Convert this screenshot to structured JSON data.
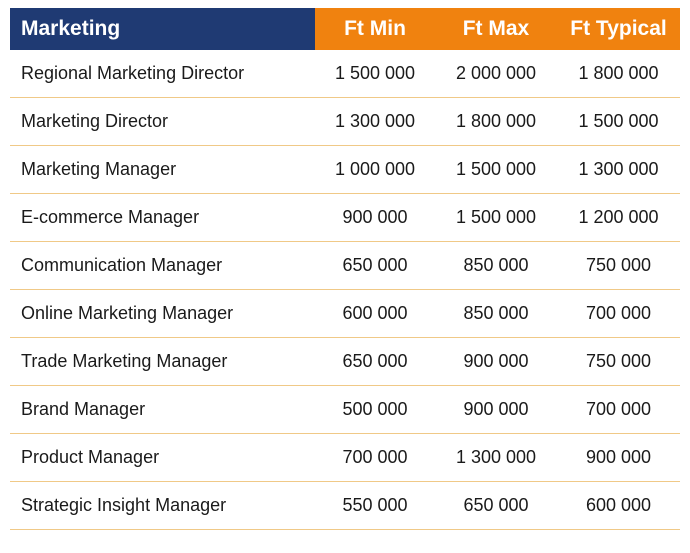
{
  "table": {
    "header": {
      "title": "Marketing",
      "columns": [
        "Ft Min",
        "Ft Max",
        "Ft Typical"
      ]
    },
    "rows": [
      {
        "role": "Regional Marketing Director",
        "min": "1 500 000",
        "max": "2 000 000",
        "typical": "1 800 000"
      },
      {
        "role": "Marketing Director",
        "min": "1 300 000",
        "max": "1 800 000",
        "typical": "1 500 000"
      },
      {
        "role": "Marketing Manager",
        "min": "1 000 000",
        "max": "1 500 000",
        "typical": "1 300 000"
      },
      {
        "role": "E-commerce Manager",
        "min": "900 000",
        "max": "1 500 000",
        "typical": "1 200 000"
      },
      {
        "role": "Communication Manager",
        "min": "650 000",
        "max": "850 000",
        "typical": "750 000"
      },
      {
        "role": "Online Marketing Manager",
        "min": "600 000",
        "max": "850 000",
        "typical": "700 000"
      },
      {
        "role": "Trade Marketing Manager",
        "min": "650 000",
        "max": "900 000",
        "typical": "750 000"
      },
      {
        "role": "Brand Manager",
        "min": "500 000",
        "max": "900 000",
        "typical": "700 000"
      },
      {
        "role": "Product Manager",
        "min": "700 000",
        "max": "1 300 000",
        "typical": "900 000"
      },
      {
        "role": "Strategic Insight Manager",
        "min": "550 000",
        "max": "650 000",
        "typical": "600 000"
      }
    ],
    "colors": {
      "header_title_bg": "#1f3a73",
      "header_columns_bg": "#f0820f",
      "row_divider": "#f0c987"
    }
  }
}
